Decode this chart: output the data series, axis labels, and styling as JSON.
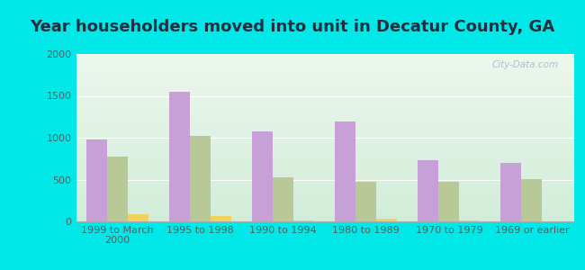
{
  "title": "Year householders moved into unit in Decatur County, GA",
  "categories": [
    "1999 to March\n2000",
    "1995 to 1998",
    "1990 to 1994",
    "1980 to 1989",
    "1970 to 1979",
    "1969 or earlier"
  ],
  "white_non_hispanic": [
    975,
    1550,
    1075,
    1190,
    730,
    700
  ],
  "black": [
    775,
    1025,
    530,
    470,
    470,
    510
  ],
  "hispanic_or_latino": [
    90,
    60,
    10,
    30,
    10,
    5
  ],
  "white_color": "#c8a0d8",
  "black_color": "#b8c896",
  "hispanic_color": "#f0d060",
  "background_outer": "#00e8e8",
  "ylim": [
    0,
    2000
  ],
  "yticks": [
    0,
    500,
    1000,
    1500,
    2000
  ],
  "bar_width": 0.25,
  "title_fontsize": 13,
  "legend_fontsize": 9,
  "tick_fontsize": 8
}
